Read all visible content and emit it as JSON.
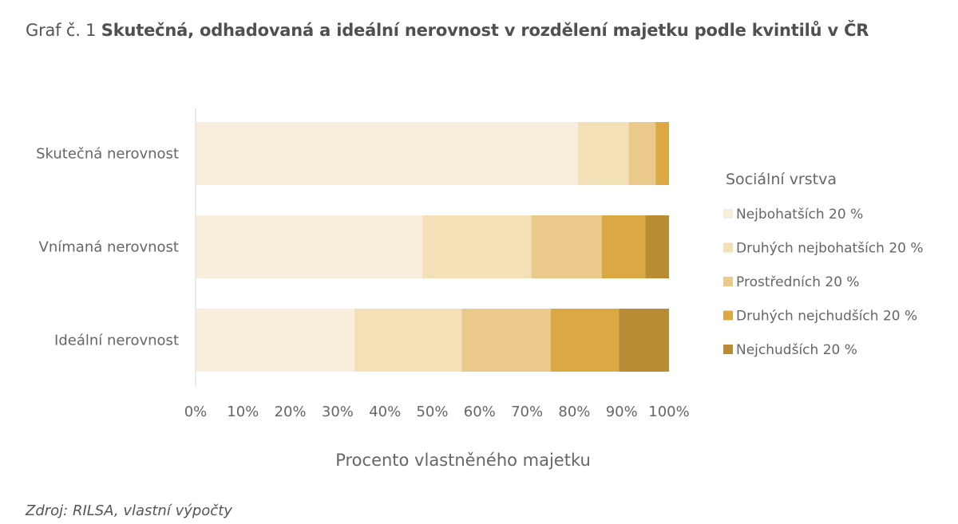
{
  "title_prefix": "Graf č. 1",
  "title_main": "Skutečná, odhadovaná a ideální nerovnost v rozdělení majetku podle kvintilů v ČR",
  "source": "Zdroj: RILSA, vlastní výpočty",
  "colors": [
    "#f8eedb",
    "#f3e0b7",
    "#ebc98a",
    "#dba843",
    "#b98b35"
  ],
  "chart_data": {
    "type": "bar",
    "orientation": "horizontal",
    "stacked": true,
    "categories": [
      "Skutečná nerovnost",
      "Vnímaná nerovnost",
      "Ideální nerovnost"
    ],
    "series": [
      {
        "name": "Nejbohatších 20 %",
        "values": [
          80.8,
          47.9,
          33.6
        ]
      },
      {
        "name": "Druhých nejbohatších 20 %",
        "values": [
          10.7,
          23.0,
          22.6
        ]
      },
      {
        "name": "Prostředních 20 %",
        "values": [
          5.7,
          14.9,
          18.8
        ]
      },
      {
        "name": "Druhých nejchudších 20 %",
        "values": [
          2.8,
          9.2,
          14.4
        ]
      },
      {
        "name": "Nejchudších 20 %",
        "values": [
          0.0,
          5.0,
          10.6
        ]
      }
    ],
    "xlim": [
      0,
      100
    ],
    "xticks": [
      "0%",
      "10%",
      "20%",
      "30%",
      "40%",
      "50%",
      "60%",
      "70%",
      "80%",
      "90%",
      "100%"
    ],
    "xlabel": "Procento vlastněného majetku",
    "ylabel": "",
    "legend_title": "Sociální vrstva",
    "legend_position": "right",
    "grid": false
  }
}
